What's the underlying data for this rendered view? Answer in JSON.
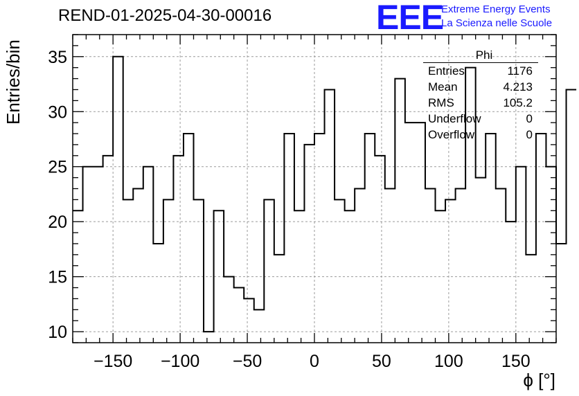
{
  "title": "REND-01-2025-04-30-00016",
  "logo": {
    "mark": "EEE",
    "line1": "Extreme Energy Events",
    "line2": "La Scienza nelle Scuole",
    "color": "#1a1aff"
  },
  "stats_box": {
    "title": "Phi",
    "rows": [
      {
        "label": "Entries",
        "value": "1176"
      },
      {
        "label": "Mean",
        "value": "4.213"
      },
      {
        "label": "RMS",
        "value": "105.2"
      },
      {
        "label": "Underflow",
        "value": "0"
      },
      {
        "label": "Overflow",
        "value": "0"
      }
    ]
  },
  "chart_data": {
    "type": "bar",
    "style": "step-histogram",
    "xlabel": "ϕ [°]",
    "ylabel": "Entries/bin",
    "xlim": [
      -180,
      180
    ],
    "ylim": [
      9,
      37
    ],
    "xticks": [
      -150,
      -100,
      -50,
      0,
      50,
      100,
      150
    ],
    "yticks": [
      10,
      15,
      20,
      25,
      30,
      35
    ],
    "grid": true,
    "bin_width": 7.5,
    "bin_start": -180,
    "values": [
      21,
      25,
      25,
      26,
      35,
      22,
      23,
      25,
      18,
      22,
      26,
      28,
      22,
      10,
      21,
      15,
      14,
      13,
      12,
      22,
      17,
      28,
      21,
      27,
      28,
      32,
      22,
      21,
      23,
      28,
      26,
      23,
      33,
      29,
      29,
      23,
      21,
      22,
      23,
      34,
      24,
      28,
      23,
      20,
      25,
      17,
      28,
      25,
      18,
      32
    ]
  }
}
